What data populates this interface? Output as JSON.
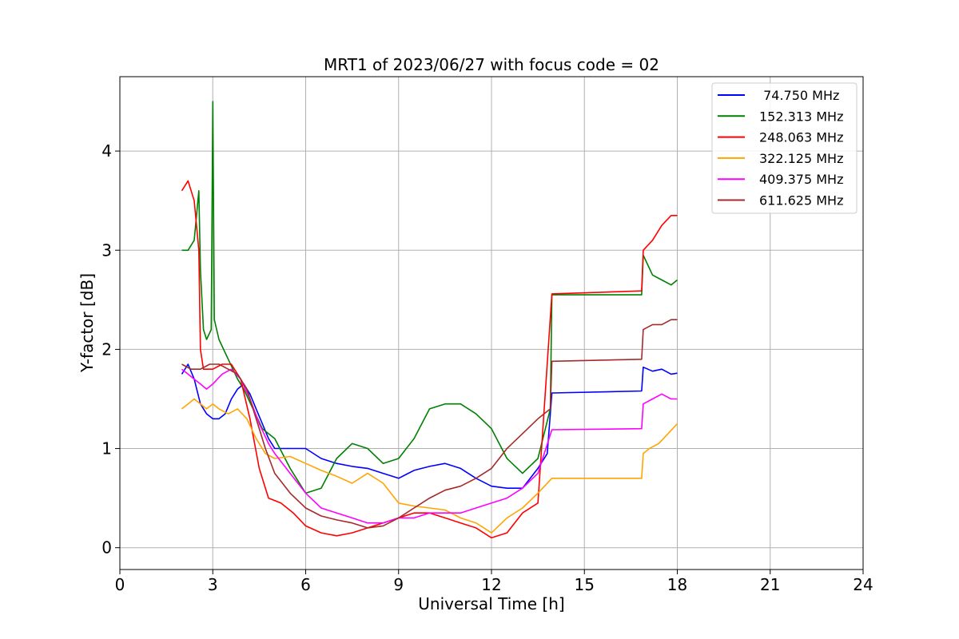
{
  "chart_data": {
    "type": "line",
    "title": "MRT1 of 2023/06/27 with focus code = 02",
    "xlabel": "Universal Time [h]",
    "ylabel": "Y-factor [dB]",
    "xlim": [
      0,
      24
    ],
    "ylim": [
      -0.22,
      4.75
    ],
    "xticks": [
      0,
      3,
      6,
      9,
      12,
      15,
      18,
      21,
      24
    ],
    "yticks": [
      0,
      1,
      2,
      3,
      4
    ],
    "grid": true,
    "legend_position": "top-right",
    "series": [
      {
        "name": " 74.750 MHz",
        "color": "#0000ff",
        "x": [
          2.0,
          2.2,
          2.4,
          2.6,
          2.8,
          3.0,
          3.2,
          3.4,
          3.6,
          3.8,
          4.0,
          4.2,
          4.4,
          4.6,
          4.8,
          5.0,
          5.5,
          6.0,
          6.5,
          7.0,
          7.5,
          8.0,
          8.5,
          9.0,
          9.5,
          10.0,
          10.5,
          11.0,
          11.5,
          12.0,
          12.5,
          13.0,
          13.5,
          13.8,
          13.95,
          16.85,
          16.9,
          17.2,
          17.5,
          17.8,
          18.0
        ],
        "y": [
          1.75,
          1.85,
          1.7,
          1.45,
          1.35,
          1.3,
          1.3,
          1.35,
          1.5,
          1.6,
          1.65,
          1.55,
          1.4,
          1.25,
          1.1,
          1.0,
          1.0,
          1.0,
          0.9,
          0.85,
          0.82,
          0.8,
          0.75,
          0.7,
          0.78,
          0.82,
          0.85,
          0.8,
          0.7,
          0.62,
          0.6,
          0.6,
          0.8,
          0.95,
          1.56,
          1.58,
          1.82,
          1.78,
          1.8,
          1.75,
          1.76
        ]
      },
      {
        "name": "152.313 MHz",
        "color": "#008000",
        "x": [
          2.0,
          2.2,
          2.4,
          2.55,
          2.6,
          2.7,
          2.8,
          2.95,
          3.0,
          3.05,
          3.2,
          3.5,
          3.8,
          4.0,
          4.3,
          4.6,
          5.0,
          5.5,
          6.0,
          6.5,
          7.0,
          7.5,
          8.0,
          8.5,
          9.0,
          9.5,
          10.0,
          10.5,
          11.0,
          11.5,
          12.0,
          12.5,
          13.0,
          13.5,
          13.9,
          13.95,
          16.85,
          16.9,
          17.2,
          17.5,
          17.8,
          18.0
        ],
        "y": [
          3.0,
          3.0,
          3.1,
          3.6,
          2.8,
          2.2,
          2.1,
          2.2,
          4.5,
          2.3,
          2.1,
          1.9,
          1.7,
          1.6,
          1.4,
          1.2,
          1.1,
          0.8,
          0.55,
          0.6,
          0.9,
          1.05,
          1.0,
          0.85,
          0.9,
          1.1,
          1.4,
          1.45,
          1.45,
          1.35,
          1.2,
          0.9,
          0.75,
          0.9,
          1.4,
          2.55,
          2.55,
          2.95,
          2.75,
          2.7,
          2.65,
          2.7
        ]
      },
      {
        "name": "248.063 MHz",
        "color": "#ff0000",
        "x": [
          2.0,
          2.2,
          2.4,
          2.55,
          2.6,
          2.7,
          2.8,
          3.0,
          3.3,
          3.6,
          3.9,
          4.2,
          4.5,
          4.8,
          5.2,
          5.6,
          6.0,
          6.5,
          7.0,
          7.5,
          8.0,
          8.5,
          9.0,
          9.5,
          10.0,
          10.5,
          11.0,
          11.5,
          12.0,
          12.5,
          13.0,
          13.5,
          13.95,
          16.85,
          16.9,
          17.2,
          17.5,
          17.8,
          18.0
        ],
        "y": [
          3.6,
          3.7,
          3.5,
          3.0,
          2.0,
          1.8,
          1.8,
          1.8,
          1.85,
          1.85,
          1.7,
          1.3,
          0.8,
          0.5,
          0.45,
          0.35,
          0.22,
          0.15,
          0.12,
          0.15,
          0.2,
          0.25,
          0.3,
          0.35,
          0.35,
          0.3,
          0.25,
          0.2,
          0.1,
          0.15,
          0.35,
          0.45,
          2.56,
          2.59,
          3.0,
          3.1,
          3.25,
          3.35,
          3.35
        ]
      },
      {
        "name": "322.125 MHz",
        "color": "#ffa500",
        "x": [
          2.0,
          2.2,
          2.4,
          2.6,
          2.8,
          3.0,
          3.2,
          3.5,
          3.8,
          4.1,
          4.4,
          4.7,
          5.0,
          5.5,
          6.0,
          6.5,
          7.0,
          7.5,
          8.0,
          8.5,
          9.0,
          9.5,
          10.0,
          10.5,
          11.0,
          11.5,
          12.0,
          12.5,
          13.0,
          13.5,
          13.95,
          16.85,
          16.9,
          17.1,
          17.4,
          17.7,
          18.0
        ],
        "y": [
          1.4,
          1.45,
          1.5,
          1.45,
          1.4,
          1.45,
          1.4,
          1.35,
          1.4,
          1.3,
          1.1,
          0.95,
          0.9,
          0.92,
          0.85,
          0.78,
          0.72,
          0.65,
          0.75,
          0.65,
          0.45,
          0.42,
          0.4,
          0.38,
          0.3,
          0.25,
          0.15,
          0.3,
          0.4,
          0.55,
          0.7,
          0.7,
          0.95,
          1.0,
          1.05,
          1.15,
          1.25
        ]
      },
      {
        "name": "409.375 MHz",
        "color": "#ff00ff",
        "x": [
          2.0,
          2.2,
          2.4,
          2.6,
          2.8,
          3.0,
          3.3,
          3.6,
          3.9,
          4.2,
          4.5,
          4.8,
          5.0,
          5.5,
          6.0,
          6.5,
          7.0,
          7.5,
          8.0,
          8.5,
          9.0,
          9.5,
          10.0,
          10.5,
          11.0,
          11.5,
          12.0,
          12.5,
          13.0,
          13.5,
          13.95,
          16.85,
          16.9,
          17.2,
          17.5,
          17.8,
          18.0
        ],
        "y": [
          1.8,
          1.75,
          1.7,
          1.65,
          1.6,
          1.65,
          1.75,
          1.8,
          1.7,
          1.5,
          1.25,
          1.05,
          0.95,
          0.75,
          0.55,
          0.4,
          0.35,
          0.3,
          0.25,
          0.25,
          0.3,
          0.3,
          0.35,
          0.35,
          0.35,
          0.4,
          0.45,
          0.5,
          0.6,
          0.75,
          1.19,
          1.2,
          1.45,
          1.5,
          1.55,
          1.5,
          1.5
        ]
      },
      {
        "name": "611.625 MHz",
        "color": "#a52a2a",
        "x": [
          2.0,
          2.3,
          2.6,
          2.9,
          3.2,
          3.5,
          3.8,
          4.1,
          4.4,
          4.7,
          5.0,
          5.5,
          6.0,
          6.5,
          7.0,
          7.5,
          8.0,
          8.5,
          9.0,
          9.5,
          10.0,
          10.5,
          11.0,
          11.5,
          12.0,
          12.5,
          13.0,
          13.5,
          13.9,
          13.95,
          16.85,
          16.9,
          17.2,
          17.5,
          17.8,
          18.0
        ],
        "y": [
          1.85,
          1.8,
          1.8,
          1.85,
          1.85,
          1.8,
          1.75,
          1.6,
          1.3,
          1.0,
          0.75,
          0.55,
          0.4,
          0.32,
          0.28,
          0.25,
          0.2,
          0.22,
          0.3,
          0.4,
          0.5,
          0.58,
          0.62,
          0.7,
          0.8,
          1.0,
          1.15,
          1.3,
          1.4,
          1.88,
          1.9,
          2.2,
          2.25,
          2.25,
          2.3,
          2.3
        ]
      }
    ]
  }
}
